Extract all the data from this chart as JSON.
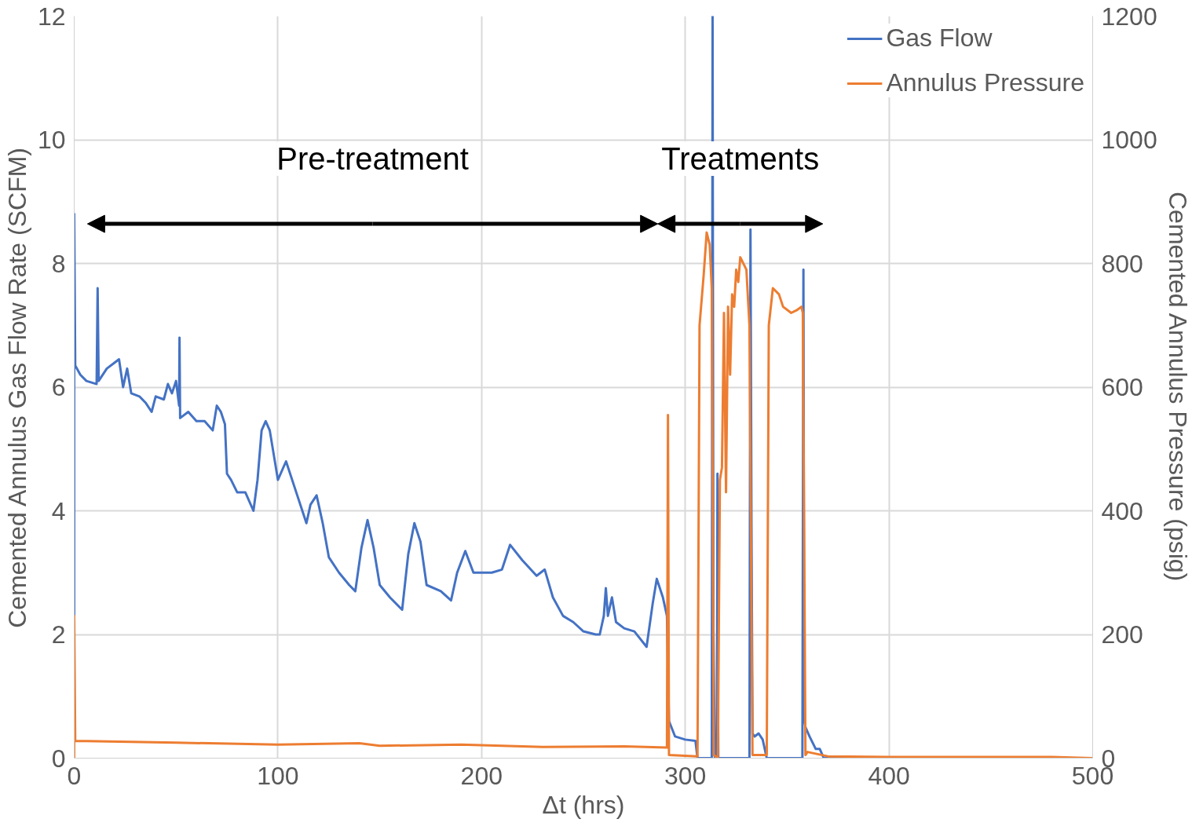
{
  "chart_data": {
    "type": "line",
    "xlabel": "Δt (hrs)",
    "ylabel": "Cemented Annulus Gas Flow Rate (SCFM)",
    "y2label": "Cemented Annulus Pressure (psig)",
    "xlim": [
      0,
      500
    ],
    "xticks": [
      0,
      100,
      200,
      300,
      400,
      500
    ],
    "ylim": [
      0,
      12
    ],
    "yticks": [
      0,
      2,
      4,
      6,
      8,
      10,
      12
    ],
    "y2lim": [
      0,
      1200
    ],
    "y2ticks": [
      0,
      200,
      400,
      600,
      800,
      1000,
      1200
    ],
    "grid": true,
    "legend": "top right",
    "line_style": "solid",
    "marker": "none",
    "annotations": [
      "Pre-treatment",
      "Treatments"
    ],
    "series": [
      {
        "name": "Gas Flow",
        "color": "#4472c4",
        "x": [
          0,
          0,
          0.5,
          3,
          6,
          11,
          11.5,
          12,
          16,
          20,
          22,
          24,
          26,
          28,
          32,
          35,
          38,
          40,
          44,
          46,
          48,
          50,
          51.5,
          51.7,
          52,
          56,
          60,
          64,
          68,
          70,
          72,
          74,
          75,
          77,
          80,
          84,
          88,
          90,
          92,
          94,
          96,
          98,
          100,
          104,
          109,
          114,
          116,
          119,
          122,
          125,
          130,
          135,
          138,
          141,
          144,
          147,
          150,
          155,
          161,
          164,
          167,
          170,
          173,
          180,
          185,
          188,
          192,
          196,
          205,
          210,
          214,
          220,
          227,
          231,
          235,
          240,
          245,
          250,
          256,
          258,
          260,
          261,
          262,
          264,
          266,
          270,
          275,
          281,
          284,
          286,
          289,
          291,
          292,
          295,
          300,
          305,
          306,
          313,
          313.4,
          313.8,
          314.5,
          315.5,
          315.8,
          316.2,
          317,
          331.5,
          332,
          332.5,
          333,
          334,
          336,
          338,
          340,
          341,
          357.5,
          358,
          358.3,
          358.6,
          359,
          361,
          364,
          366,
          368,
          400,
          500
        ],
        "values": [
          0,
          8.8,
          6.35,
          6.2,
          6.1,
          6.05,
          7.6,
          6.1,
          6.3,
          6.4,
          6.45,
          6.0,
          6.3,
          5.9,
          5.85,
          5.75,
          5.6,
          5.85,
          5.8,
          6.05,
          5.9,
          6.1,
          5.7,
          6.8,
          5.5,
          5.6,
          5.45,
          5.45,
          5.3,
          5.7,
          5.6,
          5.4,
          4.6,
          4.5,
          4.3,
          4.3,
          4.0,
          4.5,
          5.3,
          5.45,
          5.3,
          4.9,
          4.5,
          4.8,
          4.3,
          3.8,
          4.1,
          4.25,
          3.8,
          3.25,
          3.0,
          2.8,
          2.7,
          3.4,
          3.85,
          3.4,
          2.8,
          2.6,
          2.4,
          3.3,
          3.8,
          3.5,
          2.8,
          2.7,
          2.55,
          3.0,
          3.35,
          3.0,
          3.0,
          3.05,
          3.45,
          3.2,
          2.95,
          3.05,
          2.6,
          2.3,
          2.2,
          2.05,
          2.0,
          2.0,
          2.3,
          2.75,
          2.3,
          2.6,
          2.2,
          2.1,
          2.05,
          1.8,
          2.5,
          2.9,
          2.6,
          2.3,
          0.6,
          0.35,
          0.3,
          0.28,
          0,
          0,
          12,
          2.1,
          0,
          0,
          4.6,
          0,
          0,
          0,
          8.55,
          3.75,
          0.4,
          0.35,
          0.4,
          0.3,
          0,
          0,
          0,
          7.9,
          2.3,
          0.6,
          0.5,
          0.35,
          0.15,
          0.15,
          0,
          0,
          0
        ]
      },
      {
        "name": "Annulus Pressure",
        "color": "#ed7d31",
        "axis": "y2",
        "x": [
          0,
          0,
          0.5,
          50,
          100,
          140,
          150,
          190,
          230,
          270,
          291,
          291.5,
          292,
          306,
          307,
          309,
          310.5,
          312,
          313,
          314,
          316,
          317,
          318,
          319,
          320,
          321,
          322,
          323,
          324,
          325,
          326,
          327,
          330,
          331,
          331.5,
          333,
          340,
          341,
          343,
          346,
          348,
          352,
          355,
          357,
          357.7,
          359,
          360,
          370,
          400,
          480,
          500
        ],
        "values": [
          0,
          230,
          28,
          25,
          22,
          24,
          20,
          22,
          18,
          19,
          17,
          555,
          5,
          3,
          700,
          780,
          850,
          830,
          760,
          5,
          0,
          450,
          470,
          720,
          430,
          730,
          620,
          750,
          730,
          790,
          770,
          810,
          790,
          730,
          700,
          5,
          5,
          700,
          760,
          750,
          730,
          720,
          725,
          730,
          720,
          5,
          10,
          3,
          2,
          2,
          0
        ]
      }
    ]
  }
}
